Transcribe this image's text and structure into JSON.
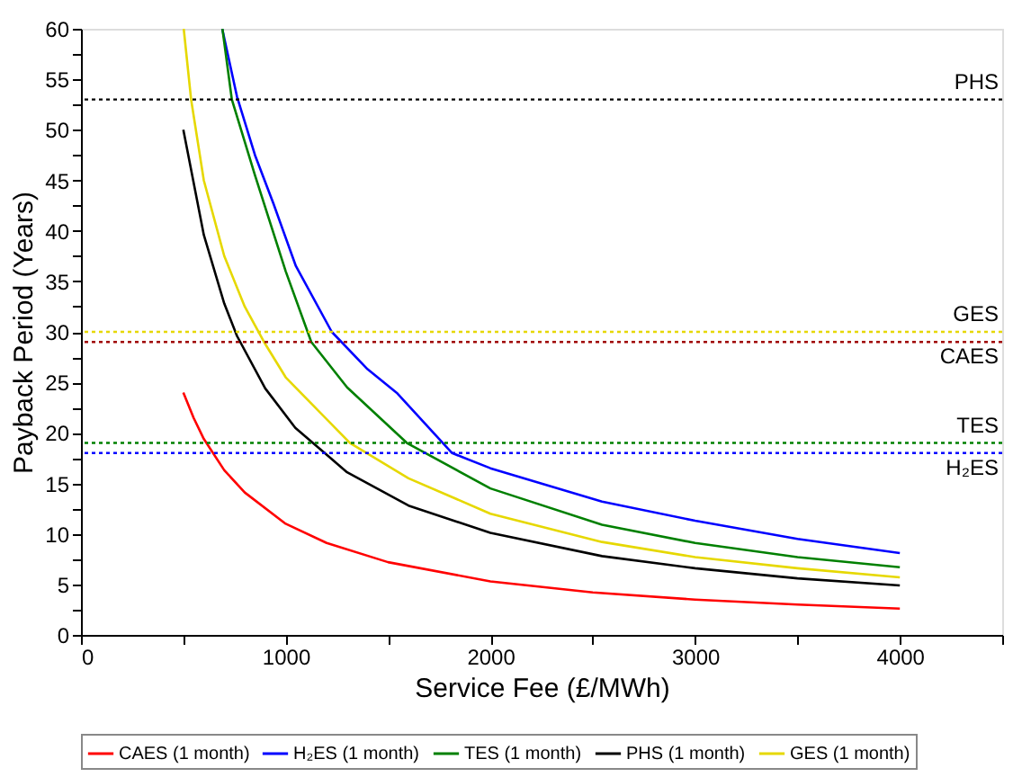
{
  "chart_data": {
    "type": "line",
    "xlabel": "Service Fee (£/MWh)",
    "ylabel": "Payback Period (Years)",
    "xlim": [
      0,
      4500
    ],
    "ylim": [
      0,
      60
    ],
    "xticks": [
      0,
      {
        "value": 500,
        "label": null
      },
      1000,
      {
        "value": 1500,
        "label": null
      },
      2000,
      {
        "value": 2500,
        "label": null
      },
      3000,
      {
        "value": 3500,
        "label": null
      },
      4000,
      {
        "value": 4500,
        "label": null
      }
    ],
    "yticks": [
      0,
      {
        "value": 2.5,
        "label": null
      },
      5,
      {
        "value": 7.5,
        "label": null
      },
      10,
      {
        "value": 12.5,
        "label": null
      },
      15,
      {
        "value": 17.5,
        "label": null
      },
      20,
      {
        "value": 22.5,
        "label": null
      },
      25,
      {
        "value": 27.5,
        "label": null
      },
      30,
      {
        "value": 32.5,
        "label": null
      },
      35,
      {
        "value": 37.5,
        "label": null
      },
      40,
      {
        "value": 42.5,
        "label": null
      },
      45,
      {
        "value": 47.5,
        "label": null
      },
      50,
      {
        "value": 52.5,
        "label": null
      },
      55,
      {
        "value": 57.5,
        "label": null
      },
      60
    ],
    "legend": "bottom",
    "grid": false,
    "marker": "none",
    "series": [
      {
        "name": "CAES (1 month)",
        "color": "#ff0000",
        "x": [
          500,
          550,
          600,
          700,
          800,
          1000,
          1200,
          1500,
          2000,
          2500,
          3000,
          3500,
          4000
        ],
        "values": [
          24,
          21.5,
          19.4,
          16.3,
          14.1,
          11.0,
          9.1,
          7.2,
          5.3,
          4.2,
          3.5,
          3.0,
          2.6
        ]
      },
      {
        "name": "H₂ES (1 month)",
        "color": "#0000ff",
        "x": [
          690,
          762,
          850,
          940,
          1050,
          1225,
          1400,
          1546,
          1813,
          2000,
          2545,
          3000,
          3500,
          4000
        ],
        "values": [
          60,
          53.3,
          47.5,
          42.7,
          36.5,
          30,
          26.3,
          23.9,
          18,
          16.5,
          13.2,
          11.3,
          9.5,
          8.1
        ]
      },
      {
        "name": "TES (1 month)",
        "color": "#008000",
        "x": [
          691,
          737,
          850,
          1000,
          1125,
          1300,
          1592,
          2000,
          2545,
          3000,
          3500,
          4000
        ],
        "values": [
          60,
          53,
          45.5,
          36,
          29,
          24.5,
          19,
          14.5,
          10.9,
          9.1,
          7.7,
          6.7
        ]
      },
      {
        "name": "PHS (1 month)",
        "color": "#000000",
        "x": [
          500,
          600,
          700,
          762,
          900,
          1047,
          1300,
          1600,
          2000,
          2545,
          3000,
          3500,
          4000
        ],
        "values": [
          50,
          39.6,
          32.8,
          29.6,
          24.4,
          20.5,
          16.1,
          12.8,
          10.1,
          7.8,
          6.6,
          5.6,
          4.9
        ]
      },
      {
        "name": "GES (1 month)",
        "color": "#e6d800",
        "x": [
          502,
          538,
          600,
          700,
          800,
          894,
          1000,
          1314,
          1600,
          2000,
          2545,
          3000,
          3500,
          4000
        ],
        "values": [
          60,
          53,
          45,
          37.5,
          32.5,
          29,
          25.5,
          19,
          15.5,
          12,
          9.2,
          7.7,
          6.6,
          5.7
        ]
      }
    ],
    "ref_lines": [
      {
        "axis": "y",
        "value": 53,
        "label": "PHS",
        "color": "#000000",
        "line_style": "dotted"
      },
      {
        "axis": "y",
        "value": 30,
        "label": "GES",
        "color": "#e6d800",
        "line_style": "dotted"
      },
      {
        "axis": "y",
        "value": 29,
        "label": "CAES",
        "color": "#a00000",
        "line_style": "dotted"
      },
      {
        "axis": "y",
        "value": 19,
        "label": "TES",
        "color": "#008000",
        "line_style": "dotted"
      },
      {
        "axis": "y",
        "value": 18,
        "label": "H₂ES",
        "color": "#0000ff",
        "line_style": "dotted"
      }
    ]
  }
}
